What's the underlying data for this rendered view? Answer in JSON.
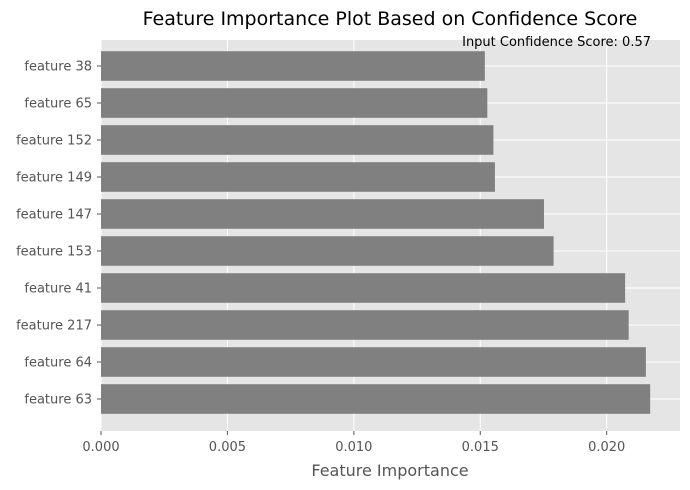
{
  "chart_data": {
    "type": "bar",
    "orientation": "horizontal",
    "title": "Feature Importance Plot Based on Confidence Score",
    "xlabel": "Feature Importance",
    "ylabel": "",
    "annotation": "Input Confidence Score: 0.57",
    "categories": [
      "feature 38",
      "feature 65",
      "feature 152",
      "feature 149",
      "feature 147",
      "feature 153",
      "feature 41",
      "feature 217",
      "feature 64",
      "feature 63"
    ],
    "values": [
      0.01518,
      0.01528,
      0.01552,
      0.01558,
      0.01752,
      0.0179,
      0.02073,
      0.02087,
      0.02155,
      0.02172
    ],
    "xlim": [
      0,
      0.0229
    ],
    "xticks": [
      0.0,
      0.005,
      0.01,
      0.015,
      0.02
    ],
    "xtick_labels": [
      "0.000",
      "0.005",
      "0.010",
      "0.015",
      "0.020"
    ],
    "bar_color": "#808080",
    "grid": true,
    "background_color": "#E5E5E5"
  }
}
